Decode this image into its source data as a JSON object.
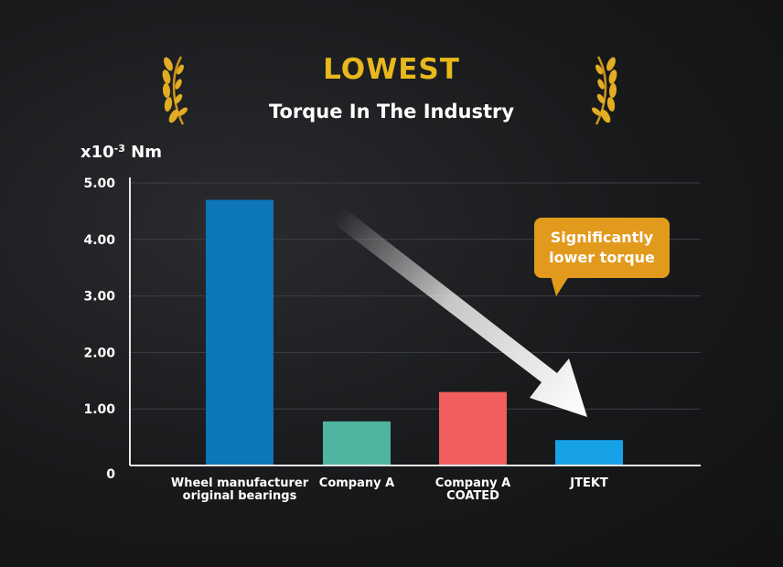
{
  "header": {
    "title": "LOWEST",
    "subtitle": "Torque In The Industry"
  },
  "unit": {
    "base": "x10",
    "exponent": "-3",
    "suffix": " Nm"
  },
  "callout": {
    "line1": "Significantly",
    "line2": "lower torque"
  },
  "colors": {
    "gold": "#e8b81c",
    "callout": "#e29a1c"
  },
  "chart_data": {
    "type": "bar",
    "categories": [
      [
        "Wheel manufacturer",
        "original bearings"
      ],
      [
        "Company A"
      ],
      [
        "Company A",
        "COATED"
      ],
      [
        "JTEKT"
      ]
    ],
    "values": [
      4.7,
      0.78,
      1.3,
      0.45
    ],
    "bar_colors": [
      "#0b76b8",
      "#4fb5a0",
      "#f25e5e",
      "#17a2e8"
    ],
    "yticks": [
      "0",
      "1.00",
      "2.00",
      "3.00",
      "4.00",
      "5.00"
    ],
    "ylim": [
      0,
      5
    ],
    "ylabel": "x10⁻³ Nm",
    "grid": true,
    "legend": "none"
  }
}
